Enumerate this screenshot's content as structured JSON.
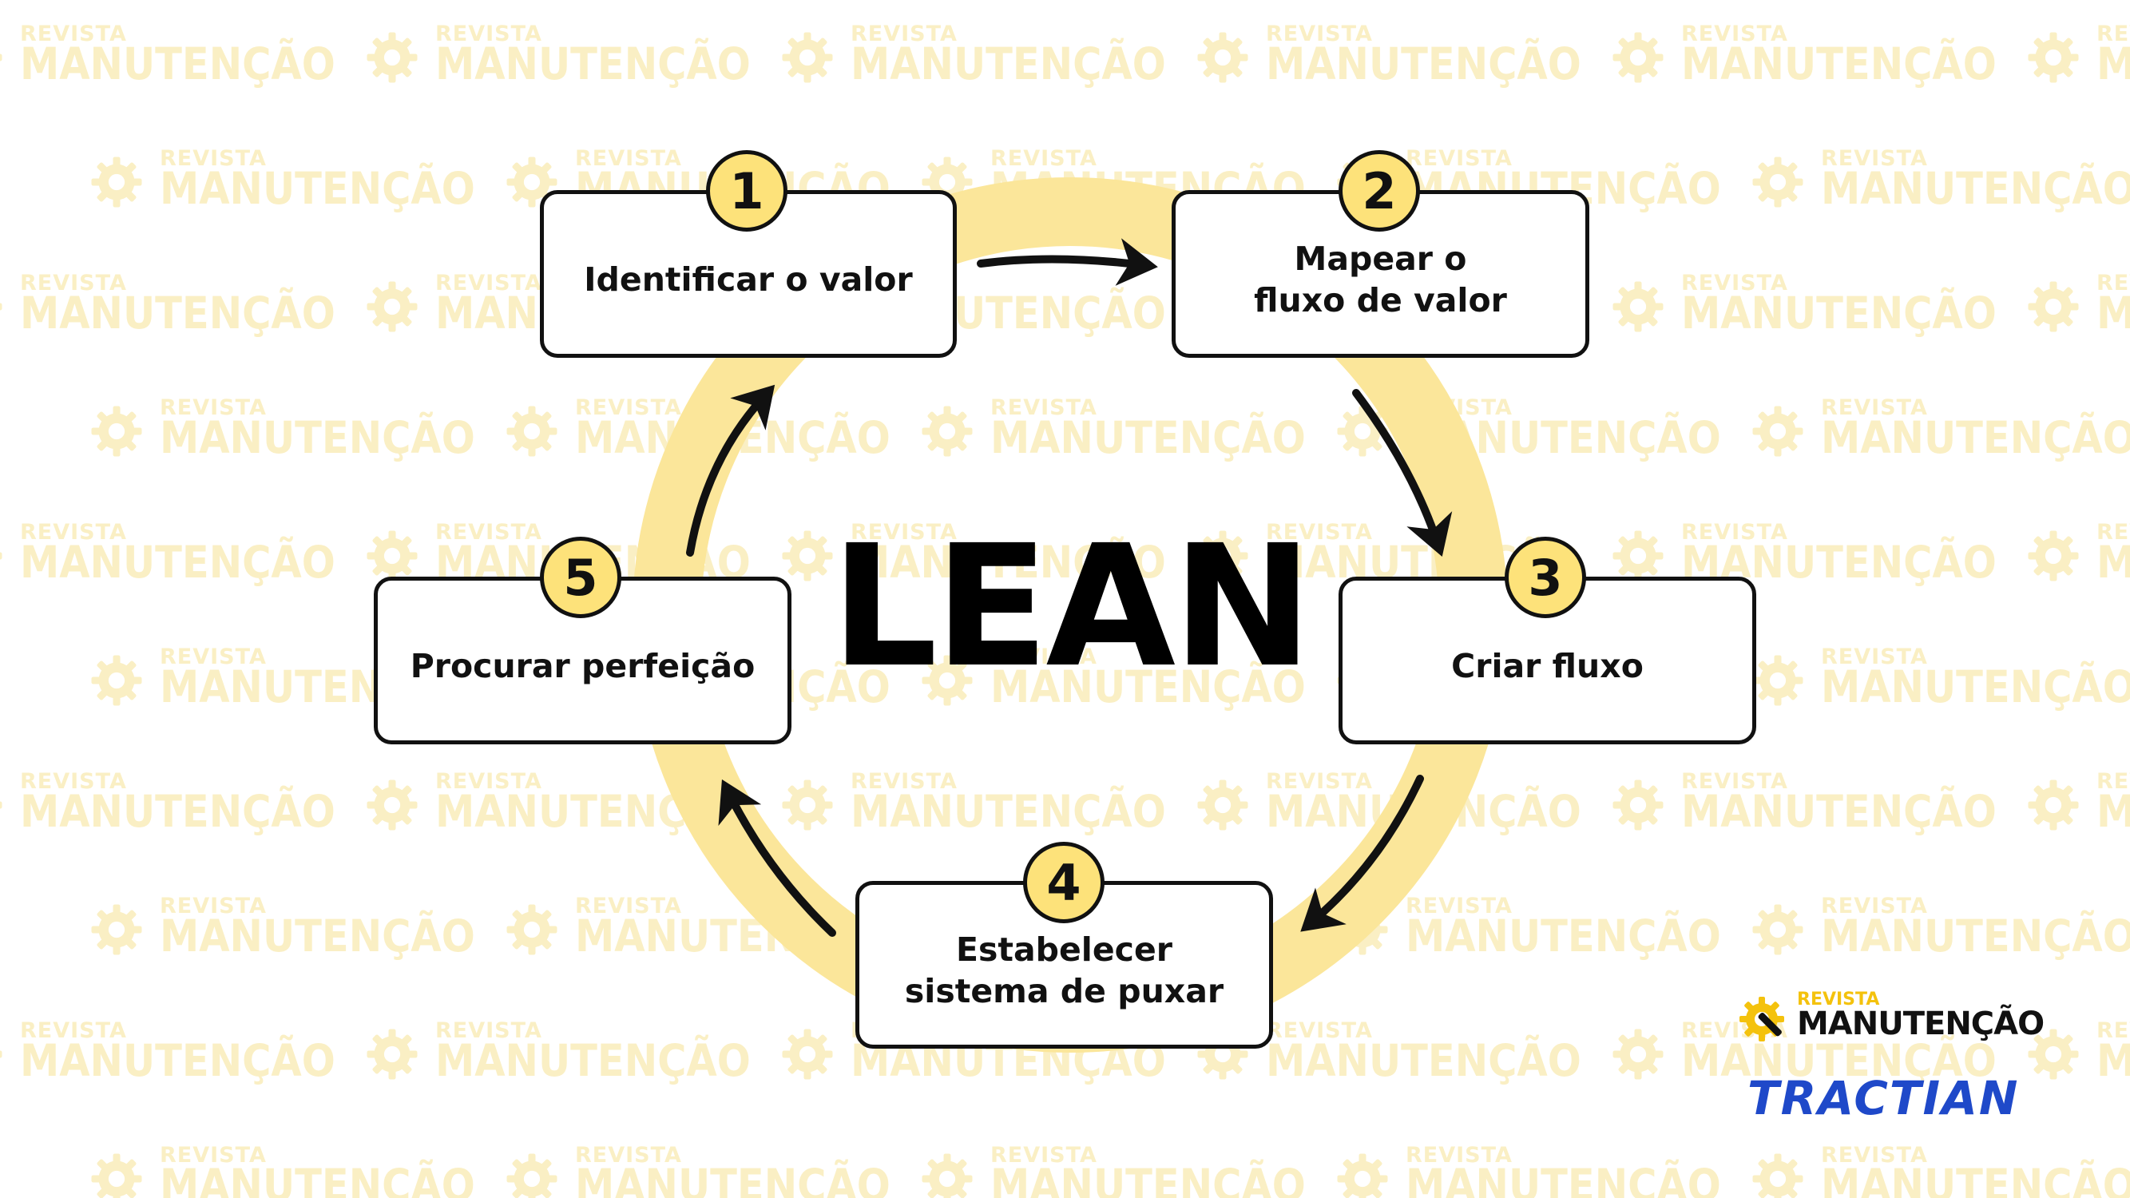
{
  "title": "LEAN",
  "steps": [
    {
      "number": "1",
      "label": "Identificar o valor"
    },
    {
      "number": "2",
      "label": "Mapear o\nfluxo de valor"
    },
    {
      "number": "3",
      "label": "Criar fluxo"
    },
    {
      "number": "4",
      "label": "Estabelecer\nsistema de puxar"
    },
    {
      "number": "5",
      "label": "Procurar perfeição"
    }
  ],
  "watermark": {
    "small": "REVISTA",
    "big": "MANUTENÇÃO"
  },
  "brand": {
    "small": "REVISTA",
    "big": "MANUTENÇÃO",
    "partner": "TRACTIAN"
  },
  "colors": {
    "accent": "#fde27a",
    "ring": "#fbe69a",
    "watermark": "#faefc4",
    "outline": "#111111",
    "partner": "#1f49c9"
  },
  "icons": [
    "gear-wrench-icon",
    "arrow-icon"
  ]
}
